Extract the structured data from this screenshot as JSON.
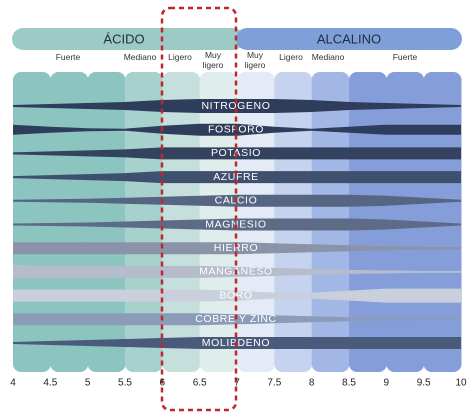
{
  "chart_data": {
    "type": "availability",
    "groups": [
      "ÁCIDO",
      "ALCALINO"
    ],
    "zones": [
      "Fuerte",
      "Mediano",
      "Ligero",
      "Muy ligero",
      "Muy ligero",
      "Ligero",
      "Mediano",
      "Fuerte"
    ],
    "x": [
      4,
      4.5,
      5,
      5.5,
      6,
      6.5,
      7,
      7.5,
      8,
      8.5,
      9,
      9.5,
      10
    ],
    "xlim": [
      4,
      10
    ],
    "xticks": [
      4,
      4.5,
      5,
      5.5,
      6,
      6.5,
      7,
      7.5,
      8,
      8.5,
      9,
      9.5,
      10
    ],
    "series": [
      {
        "name": "NITROGENO",
        "color": "#2e3d5c",
        "values": [
          2,
          4,
          6,
          8,
          12,
          14,
          14,
          14,
          12,
          8,
          6,
          4,
          2
        ]
      },
      {
        "name": "FOSFORO",
        "color": "#2e3d5c",
        "values": [
          10,
          6,
          3,
          2,
          8,
          12,
          12,
          6,
          2,
          6,
          10,
          10,
          10
        ]
      },
      {
        "name": "POTASIO",
        "color": "#33425f",
        "values": [
          2,
          4,
          6,
          8,
          12,
          12,
          12,
          12,
          12,
          12,
          12,
          12,
          12
        ]
      },
      {
        "name": "AZUFRE",
        "color": "#3f4f6e",
        "values": [
          2,
          4,
          6,
          8,
          12,
          12,
          12,
          12,
          12,
          12,
          12,
          12,
          12
        ]
      },
      {
        "name": "CALCIO",
        "color": "#566582",
        "values": [
          2,
          3,
          4,
          6,
          8,
          10,
          12,
          12,
          12,
          12,
          10,
          6,
          2
        ]
      },
      {
        "name": "MAGNESIO",
        "color": "#5d6b87",
        "values": [
          2,
          3,
          4,
          6,
          8,
          10,
          12,
          12,
          12,
          12,
          10,
          6,
          2
        ]
      },
      {
        "name": "HIERRO",
        "color": "#8a93a8",
        "values": [
          12,
          12,
          12,
          12,
          12,
          12,
          12,
          10,
          8,
          6,
          4,
          3,
          2
        ]
      },
      {
        "name": "MANGANESO",
        "color": "#b5bccb",
        "values": [
          14,
          12,
          12,
          12,
          12,
          12,
          10,
          8,
          6,
          4,
          3,
          2,
          2
        ]
      },
      {
        "name": "BORO",
        "color": "#c9d0dc",
        "values": [
          12,
          12,
          12,
          12,
          12,
          12,
          10,
          6,
          6,
          10,
          14,
          14,
          14
        ]
      },
      {
        "name": "COBRE Y ZINC",
        "color": "#8b9bb8",
        "values": [
          12,
          12,
          12,
          12,
          12,
          12,
          10,
          8,
          6,
          4,
          3,
          2,
          2
        ]
      },
      {
        "name": "MOLIBDENO",
        "color": "#4a5a7a",
        "values": [
          2,
          4,
          6,
          8,
          10,
          12,
          12,
          12,
          12,
          12,
          12,
          12,
          12
        ]
      }
    ]
  }
}
